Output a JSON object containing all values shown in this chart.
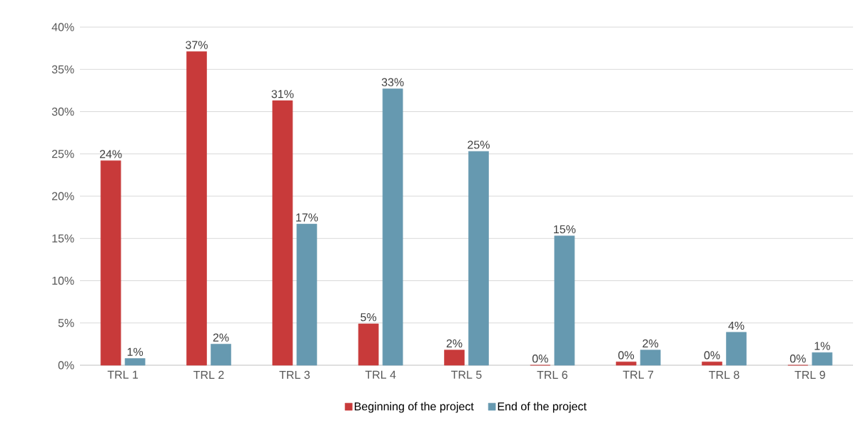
{
  "chart_data": {
    "type": "bar",
    "categories": [
      "TRL 1",
      "TRL 2",
      "TRL 3",
      "TRL 4",
      "TRL 5",
      "TRL 6",
      "TRL 7",
      "TRL 8",
      "TRL 9"
    ],
    "series": [
      {
        "name": "Beginning of the project",
        "color": "#c83a3a",
        "values": [
          24.2,
          37.1,
          31.3,
          4.9,
          1.8,
          0,
          0.4,
          0.4,
          0
        ],
        "value_labels": [
          "24%",
          "37%",
          "31%",
          "5%",
          "2%",
          "0%",
          "0%",
          "0%",
          "0%"
        ]
      },
      {
        "name": "End of the project",
        "color": "#6699b0",
        "values": [
          0.8,
          2.5,
          16.7,
          32.7,
          25.3,
          15.3,
          1.8,
          3.9,
          1.5
        ],
        "value_labels": [
          "1%",
          "2%",
          "17%",
          "33%",
          "25%",
          "15%",
          "2%",
          "4%",
          "1%"
        ]
      }
    ],
    "ylim": [
      0,
      40
    ],
    "yticks": [
      {
        "value": 0,
        "label": "0%"
      },
      {
        "value": 5,
        "label": "5%"
      },
      {
        "value": 10,
        "label": "10%"
      },
      {
        "value": 15,
        "label": "15%"
      },
      {
        "value": 20,
        "label": "20%"
      },
      {
        "value": 25,
        "label": "25%"
      },
      {
        "value": 30,
        "label": "30%"
      },
      {
        "value": 35,
        "label": "35%"
      },
      {
        "value": 40,
        "label": "40%"
      }
    ],
    "grid": "y",
    "legend": "bottom"
  }
}
